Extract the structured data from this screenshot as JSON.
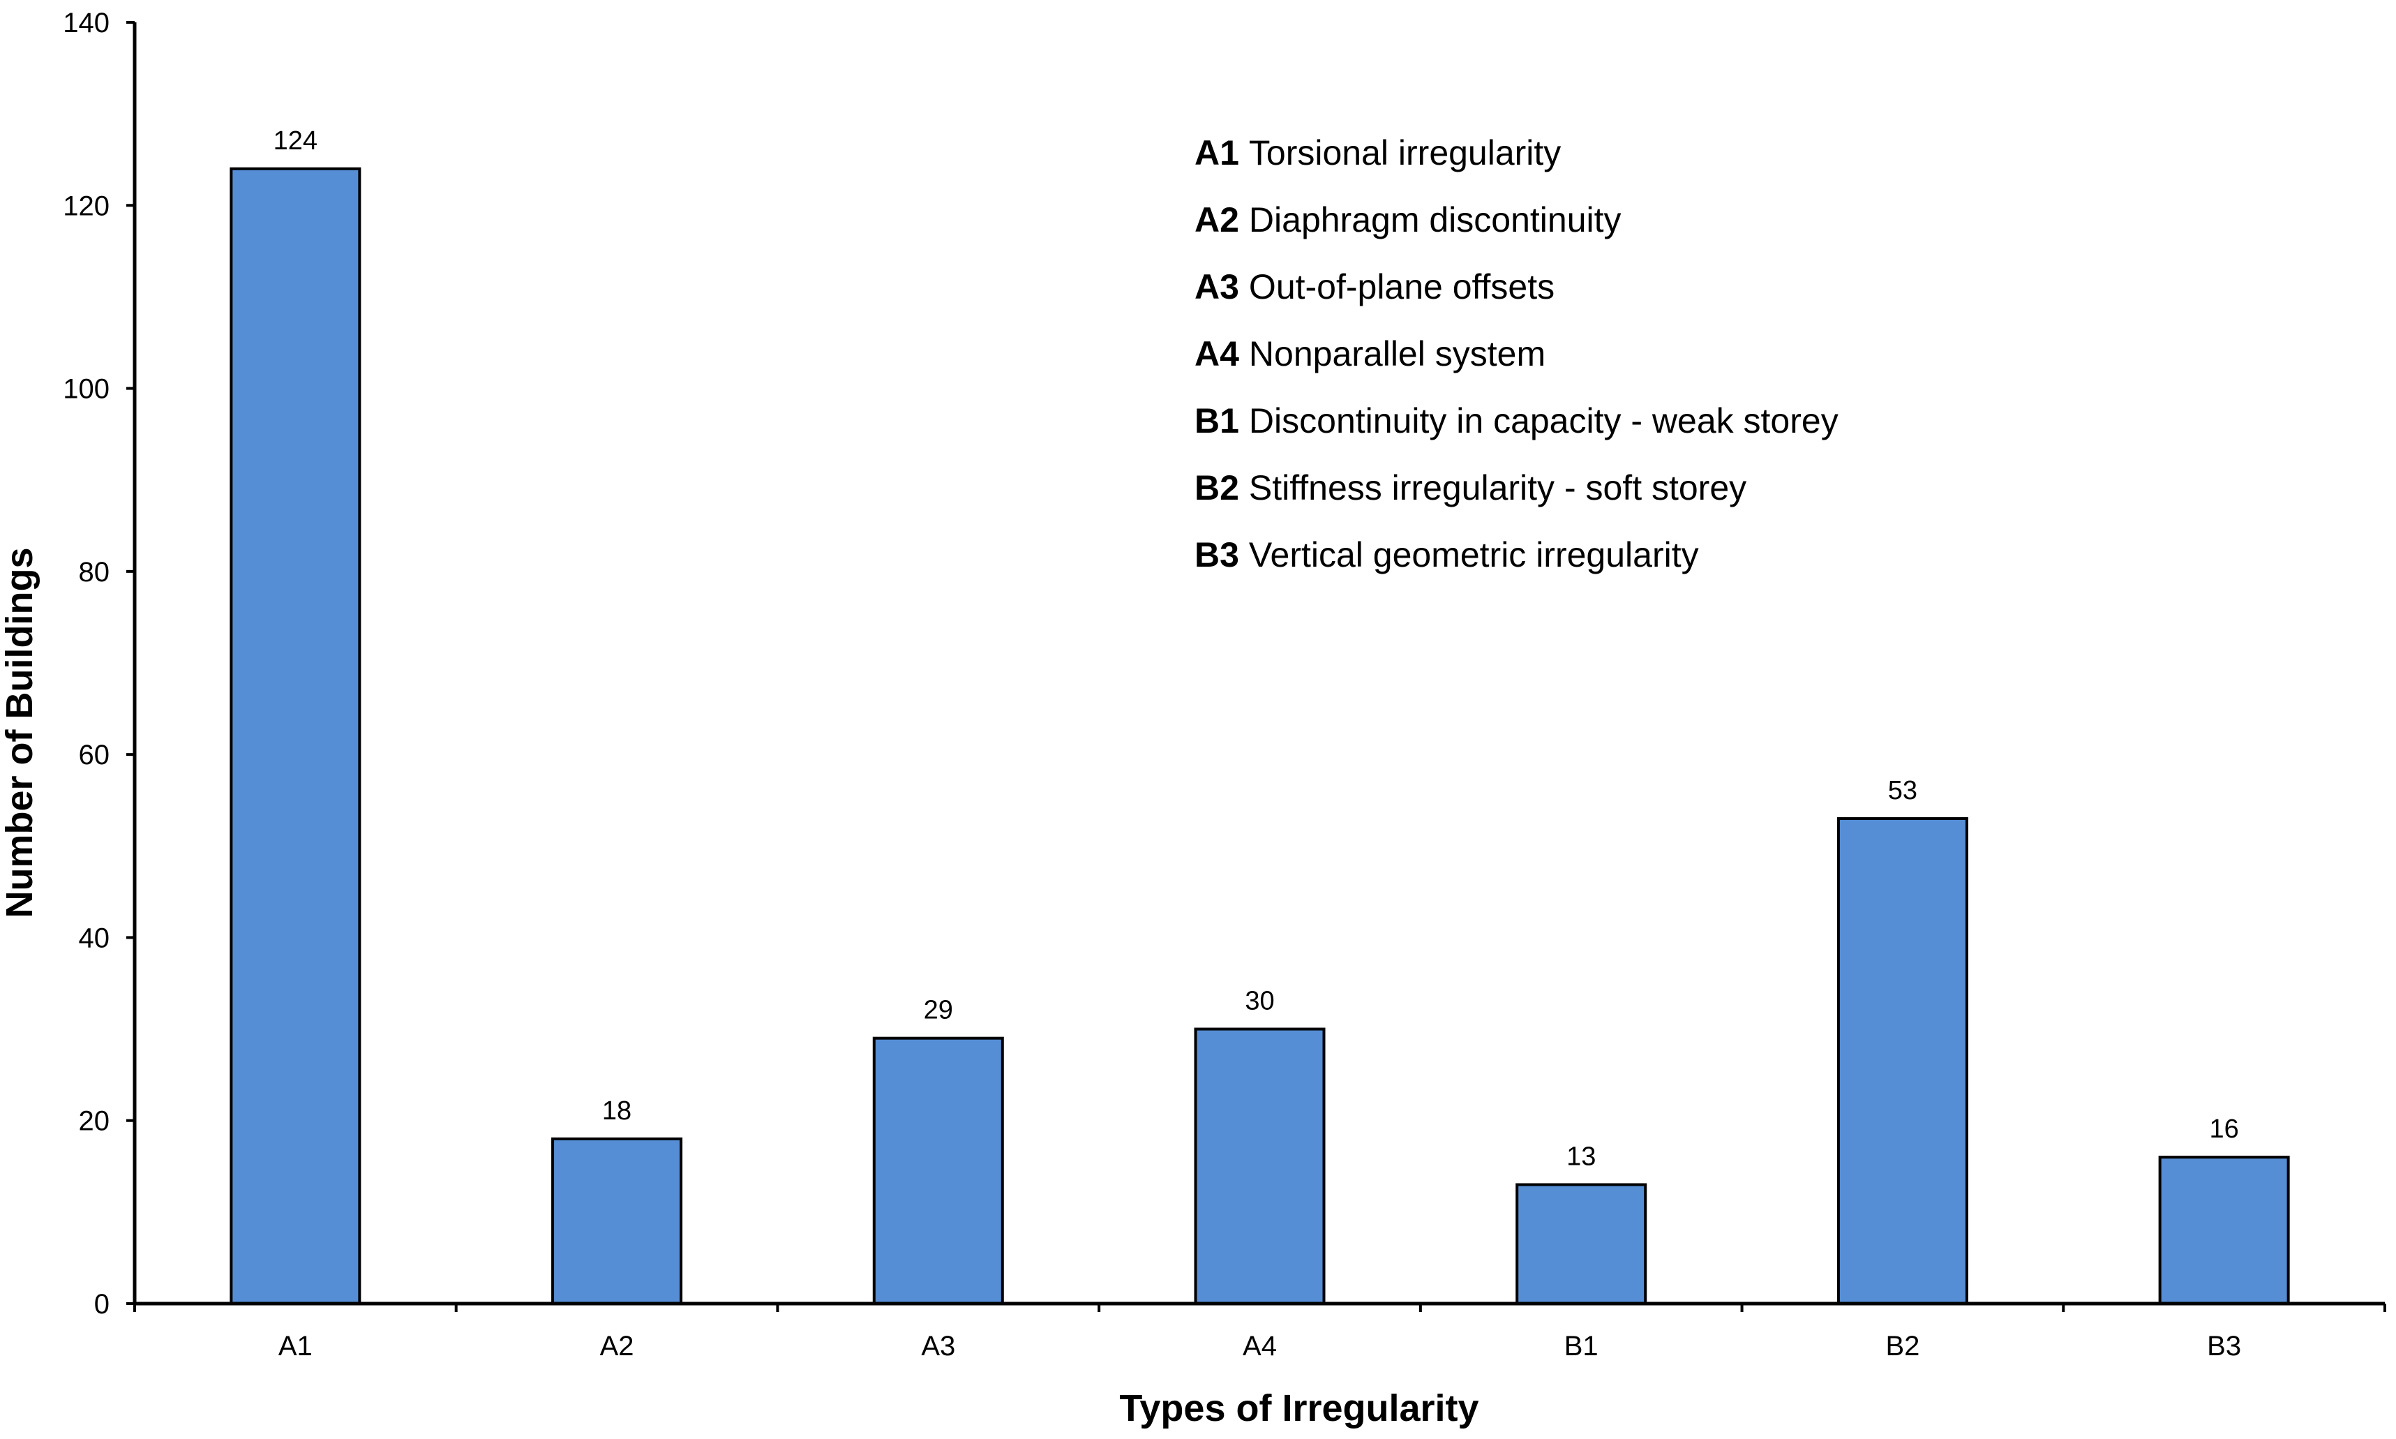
{
  "chart_data": {
    "type": "bar",
    "title": "",
    "xlabel": "Types of Irregularity",
    "ylabel": "Number of Buildings",
    "categories": [
      "A1",
      "A2",
      "A3",
      "A4",
      "B1",
      "B2",
      "B3"
    ],
    "values": [
      124,
      18,
      29,
      30,
      13,
      53,
      16
    ],
    "data_labels": [
      "124",
      "18",
      "29",
      "30",
      "13",
      "53",
      "16"
    ],
    "ylim": [
      0,
      140
    ],
    "yticks": [
      0,
      20,
      40,
      60,
      80,
      100,
      120,
      140
    ],
    "ytick_labels": [
      "0",
      "20",
      "40",
      "60",
      "80",
      "100",
      "120",
      "140"
    ],
    "grid": false,
    "bar_color": "#558ED5",
    "bar_edge_color": "#000000",
    "legend_position": "top-right",
    "legend": [
      {
        "code": "A1",
        "text": "Torsional irregularity"
      },
      {
        "code": "A2",
        "text": "Diaphragm discontinuity"
      },
      {
        "code": "A3",
        "text": "Out-of-plane offsets"
      },
      {
        "code": "A4",
        "text": "Nonparallel system"
      },
      {
        "code": "B1",
        "text": "Discontinuity in capacity - weak storey"
      },
      {
        "code": "B2",
        "text": "Stiffness irregularity - soft storey"
      },
      {
        "code": "B3",
        "text": "Vertical geometric irregularity"
      }
    ]
  }
}
